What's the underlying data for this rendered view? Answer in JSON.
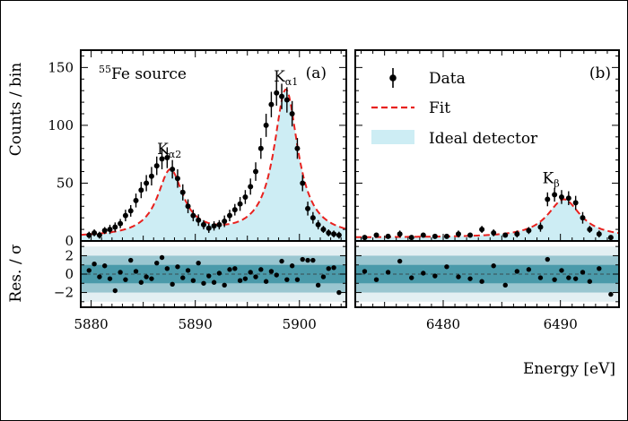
{
  "chart_data": [
    {
      "type": "scatter",
      "panel_label": "(a)",
      "source_label": {
        "sup": "55",
        "text": "Fe source"
      },
      "annotations": [
        {
          "text": "K",
          "sub": "α2",
          "x": 5887.5,
          "y": 75
        },
        {
          "text": "K",
          "sub": "α1",
          "x": 5898.7,
          "y": 138
        }
      ],
      "ylabel": "Counts / bin",
      "residual_ylabel": "Res. / σ",
      "xlim": [
        5879,
        5904.5
      ],
      "ylim": [
        0,
        165
      ],
      "residual_ylim": [
        -3.6,
        3.6
      ],
      "x_ticks": [
        5880,
        5890,
        5900
      ],
      "y_ticks": [
        0,
        50,
        100,
        150
      ],
      "residual_ticks": [
        -2,
        0,
        2
      ],
      "model": {
        "baseline": 3,
        "peaks": [
          {
            "center": 5887.6,
            "amplitude": 57,
            "width": 1.5
          },
          {
            "center": 5898.7,
            "amplitude": 127,
            "width": 1.4
          }
        ]
      },
      "series": [
        {
          "name": "Data",
          "x": [
            5879.8,
            5880.3,
            5880.8,
            5881.3,
            5881.8,
            5882.3,
            5882.8,
            5883.3,
            5883.8,
            5884.3,
            5884.8,
            5885.3,
            5885.8,
            5886.3,
            5886.8,
            5887.3,
            5887.8,
            5888.3,
            5888.8,
            5889.3,
            5889.8,
            5890.3,
            5890.8,
            5891.3,
            5891.8,
            5892.3,
            5892.8,
            5893.3,
            5893.8,
            5894.3,
            5894.8,
            5895.3,
            5895.8,
            5896.3,
            5896.8,
            5897.3,
            5897.8,
            5898.3,
            5898.8,
            5899.3,
            5899.8,
            5900.3,
            5900.8,
            5901.3,
            5901.8,
            5902.3,
            5902.8,
            5903.3,
            5903.8
          ],
          "y": [
            5,
            7,
            5,
            9,
            10,
            12,
            15,
            22,
            26,
            35,
            44,
            50,
            56,
            65,
            71,
            72,
            62,
            54,
            42,
            30,
            22,
            18,
            14,
            11,
            13,
            14,
            17,
            22,
            27,
            32,
            38,
            47,
            60,
            80,
            100,
            118,
            128,
            125,
            122,
            110,
            80,
            50,
            28,
            20,
            14,
            10,
            7,
            6,
            5
          ],
          "yerr": [
            3,
            3,
            3,
            3,
            4,
            4,
            4,
            5,
            5,
            6,
            7,
            7,
            8,
            8,
            9,
            9,
            8,
            8,
            7,
            6,
            5,
            5,
            4,
            4,
            4,
            4,
            5,
            5,
            5,
            6,
            6,
            7,
            8,
            9,
            10,
            11,
            11,
            11,
            11,
            11,
            9,
            7,
            6,
            5,
            4,
            3,
            3,
            3,
            3
          ],
          "residuals": [
            0.4,
            1.1,
            -0.3,
            0.9,
            -0.5,
            -1.8,
            0.2,
            -0.6,
            1.5,
            0.3,
            -0.9,
            -0.3,
            -0.5,
            1.2,
            1.8,
            0.6,
            -1.1,
            0.8,
            -0.4,
            0.4,
            -0.7,
            1.2,
            -1.0,
            -0.2,
            -0.9,
            0.1,
            -1.2,
            0.5,
            0.6,
            -0.7,
            -0.5,
            0.2,
            -0.3,
            0.5,
            -0.8,
            0.3,
            -0.1,
            1.4,
            -0.6,
            0.9,
            -0.6,
            1.6,
            1.5,
            1.5,
            -1.2,
            -0.3,
            0.6,
            0.7,
            -2.0
          ]
        },
        {
          "name": "Fit"
        },
        {
          "name": "Ideal detector"
        }
      ]
    },
    {
      "type": "scatter",
      "panel_label": "(b)",
      "annotations": [
        {
          "text": "K",
          "sub": "β",
          "x": 6489.2,
          "y": 50
        }
      ],
      "legend": {
        "placement": "top-right",
        "entries": [
          "Data",
          "Fit",
          "Ideal detector"
        ]
      },
      "xlabel": "Energy [eV]",
      "xlim": [
        6472.5,
        6495
      ],
      "ylim": [
        0,
        165
      ],
      "residual_ylim": [
        -3.6,
        3.6
      ],
      "x_ticks": [
        6480,
        6490
      ],
      "model": {
        "baseline": 3,
        "peaks": [
          {
            "center": 6490.3,
            "amplitude": 33,
            "width": 1.7
          }
        ]
      },
      "series": [
        {
          "name": "Data",
          "x": [
            6473.3,
            6474.3,
            6475.3,
            6476.3,
            6477.3,
            6478.3,
            6479.3,
            6480.3,
            6481.3,
            6482.3,
            6483.3,
            6484.3,
            6485.3,
            6486.3,
            6487.3,
            6488.3,
            6488.9,
            6489.5,
            6490.1,
            6490.7,
            6491.3,
            6491.9,
            6492.5,
            6493.3,
            6494.3
          ],
          "y": [
            3,
            5,
            4,
            6,
            3,
            5,
            4,
            4,
            6,
            5,
            10,
            7,
            5,
            6,
            9,
            12,
            36,
            40,
            38,
            37,
            33,
            20,
            10,
            6,
            3
          ],
          "yerr": [
            2,
            2,
            2,
            3,
            2,
            2,
            2,
            2,
            3,
            2,
            3,
            3,
            2,
            3,
            3,
            4,
            6,
            6,
            6,
            6,
            6,
            5,
            3,
            3,
            2
          ],
          "residuals": [
            0.3,
            -0.6,
            0.2,
            1.4,
            -0.4,
            0.1,
            -0.2,
            0.8,
            -0.3,
            -0.5,
            -0.8,
            0.9,
            -1.2,
            0.3,
            0.5,
            -0.4,
            1.6,
            -0.6,
            0.4,
            -0.4,
            -0.5,
            0.2,
            -0.8,
            0.6,
            -2.2
          ]
        },
        {
          "name": "Fit"
        },
        {
          "name": "Ideal detector"
        }
      ]
    }
  ]
}
